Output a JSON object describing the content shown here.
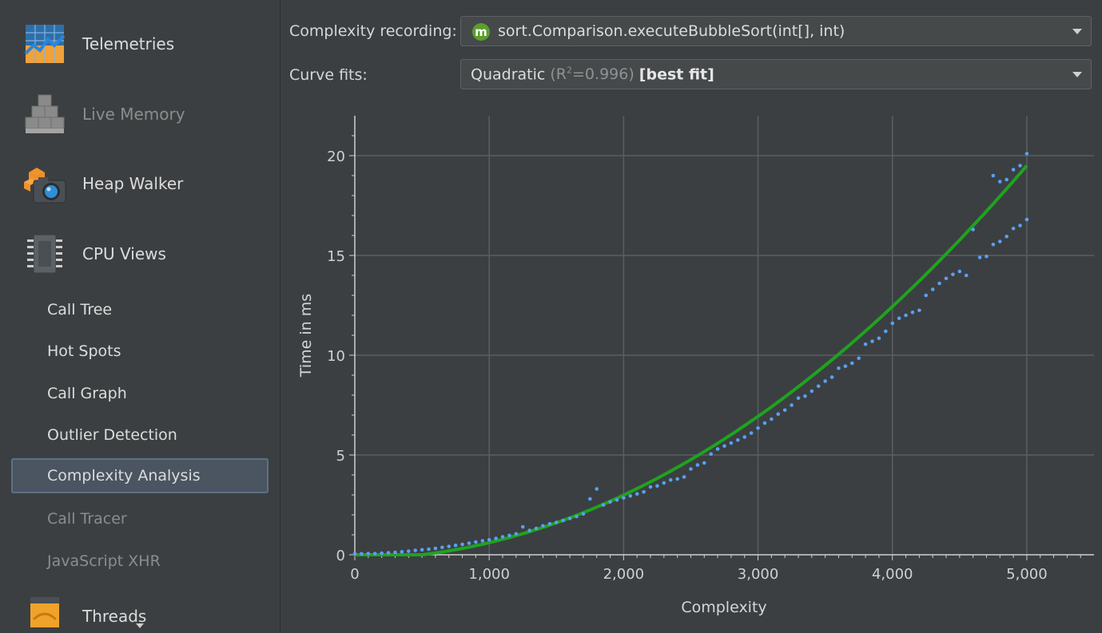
{
  "sidebar": {
    "big_items": [
      {
        "label": "Telemetries",
        "icon": "telemetries-chart-icon",
        "enabled": true
      },
      {
        "label": "Live Memory",
        "icon": "live-memory-blocks-icon",
        "enabled": false
      },
      {
        "label": "Heap Walker",
        "icon": "heap-walker-camera-icon",
        "enabled": true
      },
      {
        "label": "CPU Views",
        "icon": "cpu-chip-icon",
        "enabled": true
      }
    ],
    "sub_items": [
      {
        "label": "Call Tree",
        "enabled": true
      },
      {
        "label": "Hot Spots",
        "enabled": true
      },
      {
        "label": "Call Graph",
        "enabled": true
      },
      {
        "label": "Outlier Detection",
        "enabled": true
      },
      {
        "label": "Complexity Analysis",
        "enabled": true,
        "selected": true
      },
      {
        "label": "Call Tracer",
        "enabled": false
      },
      {
        "label": "JavaScript XHR",
        "enabled": false
      }
    ],
    "threads": {
      "label": "Threads",
      "icon": "threads-icon"
    }
  },
  "controls": {
    "recording_label": "Complexity recording:",
    "recording_badge": "m",
    "recording_value": "sort.Comparison.executeBubbleSort(int[], int)",
    "curve_label": "Curve fits:",
    "curve_name": "Quadratic",
    "curve_r_open": "(R",
    "curve_r_sup": "2",
    "curve_r_value": "=0.996)",
    "curve_best": "[best fit]"
  },
  "chart_data": {
    "type": "scatter",
    "xlabel": "Complexity",
    "ylabel": "Time in ms",
    "xlim": [
      0,
      5500
    ],
    "ylim": [
      0,
      22
    ],
    "xticks": [
      0,
      1000,
      2000,
      3000,
      4000,
      5000
    ],
    "xtick_labels": [
      "0",
      "1,000",
      "2,000",
      "3,000",
      "4,000",
      "5,000"
    ],
    "yticks": [
      0,
      5,
      10,
      15,
      20
    ],
    "ytick_labels": [
      "0",
      "5",
      "10",
      "15",
      "20"
    ],
    "grid": true,
    "colors": {
      "points": "#5aa0f0",
      "fit": "#1fa31f",
      "grid": "#5a5e62",
      "axis": "#cfcfcf"
    },
    "series": [
      {
        "kind": "points",
        "x": [
          0,
          50,
          100,
          150,
          200,
          250,
          300,
          350,
          400,
          450,
          500,
          550,
          600,
          650,
          700,
          750,
          800,
          850,
          900,
          950,
          1000,
          1050,
          1100,
          1150,
          1200,
          1250,
          1300,
          1350,
          1400,
          1450,
          1500,
          1550,
          1600,
          1650,
          1700,
          1750,
          1800,
          1850,
          1900,
          1950,
          2000,
          2050,
          2100,
          2150,
          2200,
          2250,
          2300,
          2350,
          2400,
          2450,
          2500,
          2550,
          2600,
          2650,
          2700,
          2750,
          2800,
          2850,
          2900,
          2950,
          3000,
          3050,
          3100,
          3150,
          3200,
          3250,
          3300,
          3350,
          3400,
          3450,
          3500,
          3550,
          3600,
          3650,
          3700,
          3750,
          3800,
          3850,
          3900,
          3950,
          4000,
          4050,
          4100,
          4150,
          4200,
          4250,
          4300,
          4350,
          4400,
          4450,
          4500,
          4550,
          4600,
          4650,
          4700,
          4750,
          4800,
          4850,
          4900,
          4950,
          5000
        ],
        "y": [
          0.05,
          0.05,
          0.06,
          0.06,
          0.08,
          0.1,
          0.12,
          0.15,
          0.18,
          0.22,
          0.25,
          0.28,
          0.32,
          0.37,
          0.42,
          0.47,
          0.52,
          0.58,
          0.64,
          0.7,
          0.75,
          0.82,
          0.9,
          0.97,
          1.05,
          1.4,
          1.22,
          1.32,
          1.45,
          1.55,
          1.62,
          1.72,
          1.82,
          1.92,
          2.05,
          2.8,
          3.3,
          2.5,
          2.65,
          2.75,
          2.85,
          2.95,
          3.05,
          3.15,
          3.4,
          3.45,
          3.6,
          3.75,
          3.8,
          3.9,
          4.3,
          4.5,
          4.6,
          5.05,
          5.3,
          5.45,
          5.6,
          5.75,
          5.9,
          6.1,
          6.35,
          6.6,
          6.8,
          7.05,
          7.25,
          7.5,
          7.85,
          7.95,
          8.2,
          8.45,
          8.7,
          8.9,
          9.35,
          9.45,
          9.6,
          9.85,
          10.55,
          10.7,
          10.85,
          11.2,
          11.6,
          11.85,
          12.0,
          12.15,
          12.25,
          13.0,
          13.3,
          13.6,
          13.85,
          14.05,
          14.2,
          14.0,
          16.3,
          14.9,
          14.95,
          15.55,
          15.7,
          15.95,
          16.35,
          16.5,
          16.8
        ],
        "x_extra": [
          4750,
          4800,
          4850,
          4900,
          4950,
          5000
        ],
        "y_extra": [
          19.0,
          18.7,
          18.8,
          19.3,
          19.5,
          20.1
        ]
      },
      {
        "kind": "fit",
        "model": "quadratic",
        "coefficients": {
          "a": 7.8e-07,
          "b": 0,
          "c": 0
        },
        "x_range": [
          0,
          5000
        ]
      }
    ]
  }
}
